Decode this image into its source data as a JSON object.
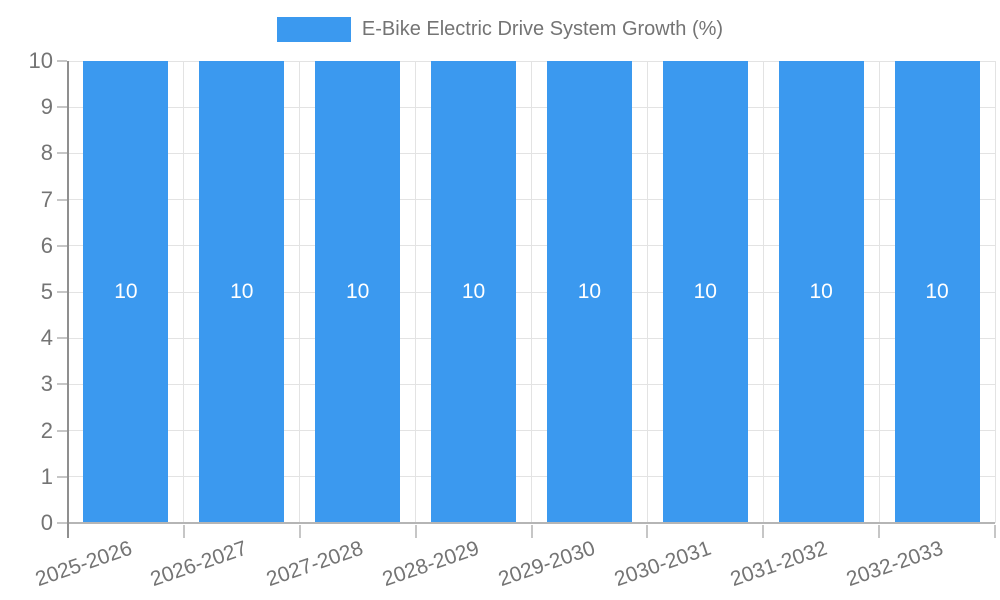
{
  "chart_data": {
    "type": "bar",
    "title": "E-Bike Electric Drive System Growth (%)",
    "legend": {
      "label": "E-Bike Electric Drive System Growth (%)",
      "position": "top"
    },
    "categories": [
      "2025-2026",
      "2026-2027",
      "2027-2028",
      "2028-2029",
      "2029-2030",
      "2030-2031",
      "2031-2032",
      "2032-2033"
    ],
    "values": [
      10,
      10,
      10,
      10,
      10,
      10,
      10,
      10
    ],
    "bar_labels": [
      "10",
      "10",
      "10",
      "10",
      "10",
      "10",
      "10",
      "10"
    ],
    "y_ticks": [
      "0",
      "1",
      "2",
      "3",
      "4",
      "5",
      "6",
      "7",
      "8",
      "9",
      "10"
    ],
    "ylim": [
      0,
      10
    ],
    "xlabel": "",
    "ylabel": "",
    "grid": true,
    "x_label_rotation_deg": -19,
    "colors": {
      "bar": "#3b99ef",
      "bar_label": "#ffffff",
      "axis_text": "#747474",
      "gridline": "#e3e3e3",
      "y_axis_line": "#8f8f8f",
      "x_axis_line": "#b5b5b5",
      "tick": "#c6c6c6"
    }
  }
}
